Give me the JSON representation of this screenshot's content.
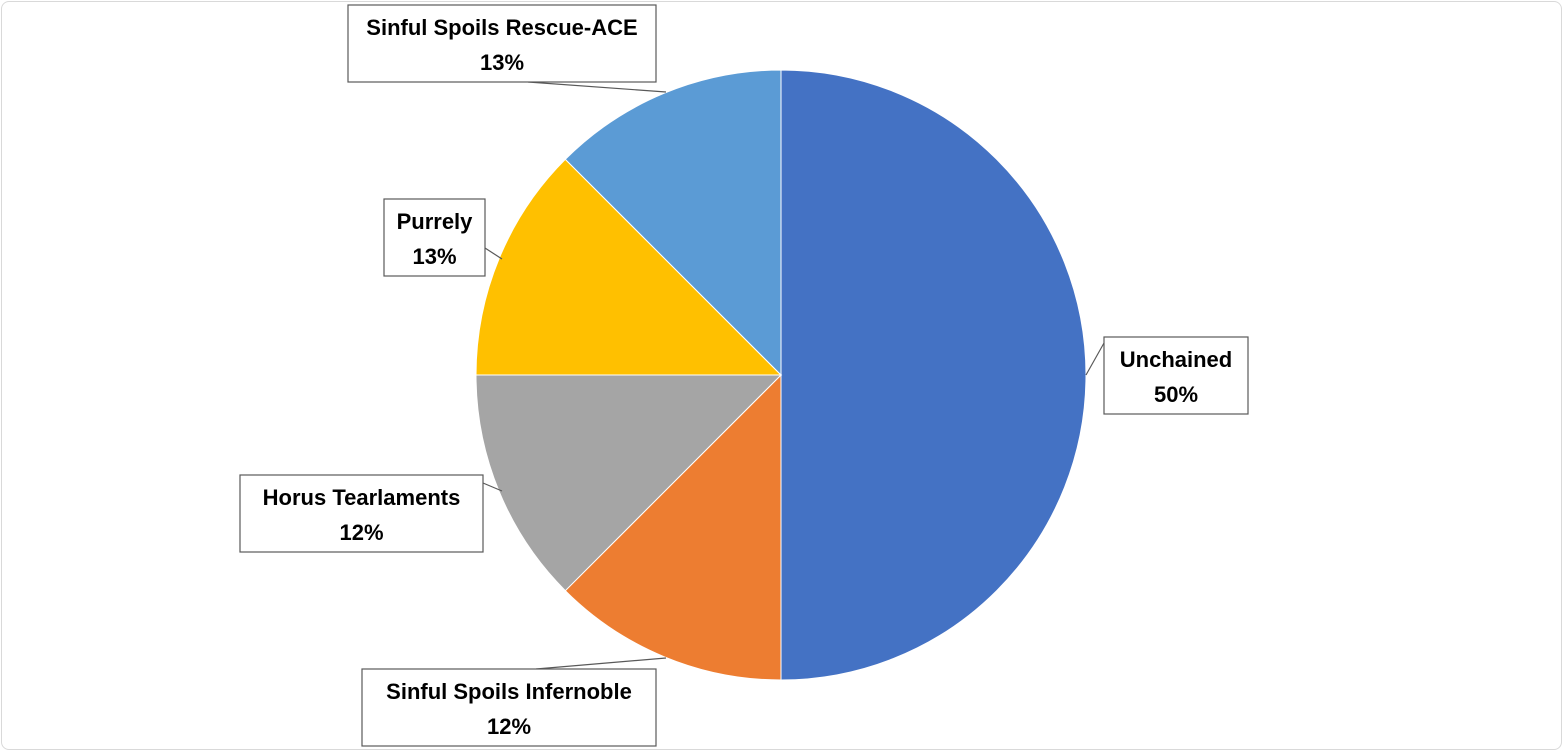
{
  "chart_data": {
    "type": "pie",
    "title": "",
    "slices": [
      {
        "name": "Unchained",
        "percent_label": "50%",
        "value": 50,
        "color": "#4472C4"
      },
      {
        "name": "Sinful Spoils Infernoble",
        "percent_label": "12%",
        "value": 12.5,
        "color": "#ED7D31"
      },
      {
        "name": "Horus Tearlaments",
        "percent_label": "12%",
        "value": 12.5,
        "color": "#A5A5A5"
      },
      {
        "name": "Purrely",
        "percent_label": "13%",
        "value": 12.5,
        "color": "#FFC000"
      },
      {
        "name": "Sinful Spoils Rescue-ACE",
        "percent_label": "13%",
        "value": 12.5,
        "color": "#5B9BD5"
      }
    ]
  }
}
